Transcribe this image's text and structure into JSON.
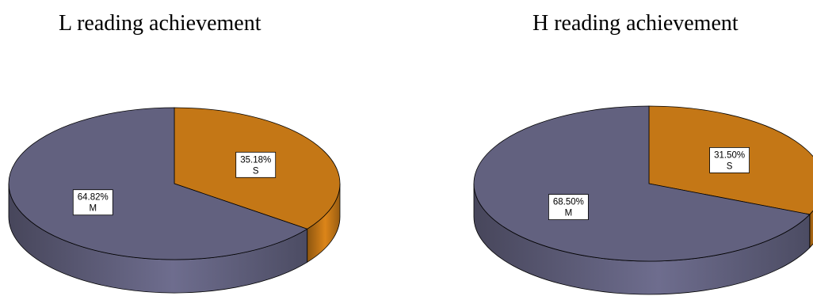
{
  "colors": {
    "M": "#62617f",
    "S": "#c47716"
  },
  "chart_data": [
    {
      "type": "pie",
      "title": "L reading achievement",
      "slices": [
        {
          "label": "S",
          "value": 35.18,
          "value_label": "35.18%",
          "color": "#c47716"
        },
        {
          "label": "M",
          "value": 64.82,
          "value_label": "64.82%",
          "color": "#62617f"
        }
      ],
      "style": "3d"
    },
    {
      "type": "pie",
      "title": "H reading achievement",
      "slices": [
        {
          "label": "S",
          "value": 31.5,
          "value_label": "31.50%",
          "color": "#c47716"
        },
        {
          "label": "M",
          "value": 68.5,
          "value_label": "68.50%",
          "color": "#62617f"
        }
      ],
      "style": "3d"
    }
  ]
}
